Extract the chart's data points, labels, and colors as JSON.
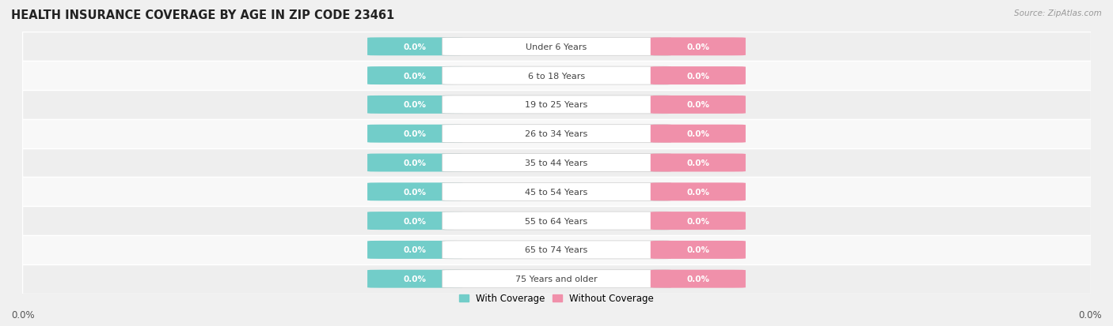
{
  "title": "HEALTH INSURANCE COVERAGE BY AGE IN ZIP CODE 23461",
  "source": "Source: ZipAtlas.com",
  "categories": [
    "Under 6 Years",
    "6 to 18 Years",
    "19 to 25 Years",
    "26 to 34 Years",
    "35 to 44 Years",
    "45 to 54 Years",
    "55 to 64 Years",
    "65 to 74 Years",
    "75 Years and older"
  ],
  "with_coverage": [
    0.0,
    0.0,
    0.0,
    0.0,
    0.0,
    0.0,
    0.0,
    0.0,
    0.0
  ],
  "without_coverage": [
    0.0,
    0.0,
    0.0,
    0.0,
    0.0,
    0.0,
    0.0,
    0.0,
    0.0
  ],
  "coverage_color": "#72cdc9",
  "no_coverage_color": "#f090aa",
  "label_text_color": "#ffffff",
  "category_label_color": "#444444",
  "row_bg_colors": [
    "#eeeeee",
    "#f8f8f8"
  ],
  "title_color": "#222222",
  "title_fontsize": 10.5,
  "source_fontsize": 7.5,
  "axis_label_fontsize": 8.5,
  "legend_fontsize": 8.5,
  "category_fontsize": 8,
  "value_label_fontsize": 7.5,
  "x_left_label": "0.0%",
  "x_right_label": "0.0%",
  "background_color": "#f0f0f0"
}
